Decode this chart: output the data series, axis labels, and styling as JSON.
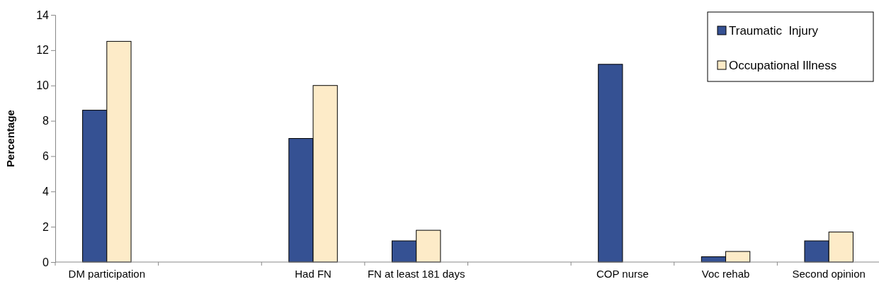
{
  "chart_data": {
    "type": "bar",
    "ylabel": "Percentage",
    "categories": [
      "DM participation",
      null,
      "Had FN",
      "FN at least 181 days",
      null,
      "COP nurse",
      "Voc rehab",
      "Second opinion"
    ],
    "series": [
      {
        "name": "Traumatic  Injury",
        "color": "#355193",
        "values": [
          8.6,
          null,
          7.0,
          1.2,
          null,
          11.2,
          0.3,
          1.2
        ]
      },
      {
        "name": "Occupational Illness",
        "color": "#fdebc8",
        "values": [
          12.5,
          null,
          10.0,
          1.8,
          null,
          null,
          0.6,
          1.7
        ]
      }
    ],
    "ylim": [
      0,
      14
    ],
    "yticks": [
      0,
      2,
      4,
      6,
      8,
      10,
      12,
      14
    ],
    "grid": false,
    "legend": "top right"
  }
}
